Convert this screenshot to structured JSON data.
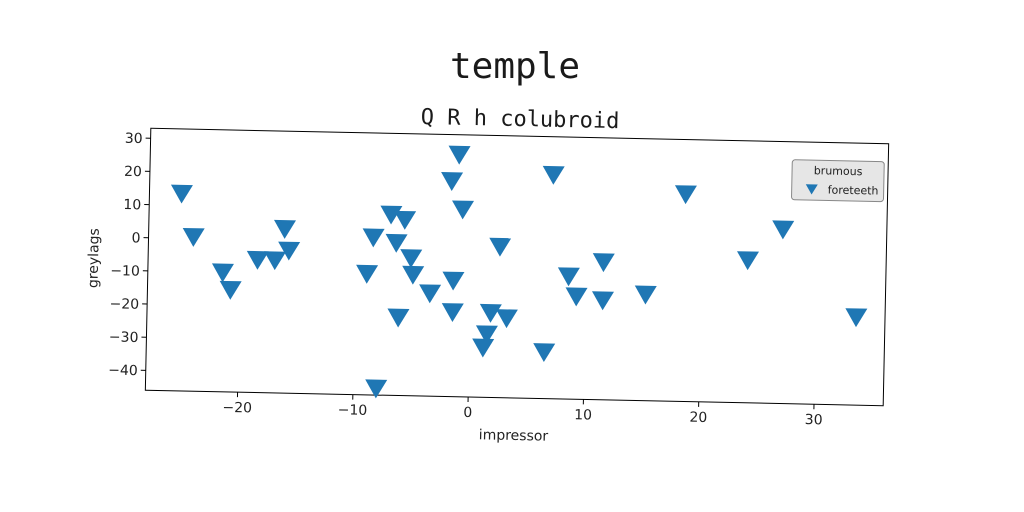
{
  "suptitle": "temple",
  "chart_data": {
    "type": "scatter",
    "title": "Q R h colubroid",
    "xlabel": "impressor",
    "ylabel": "greylags",
    "xlim": [
      -28,
      36
    ],
    "ylim": [
      -46,
      33
    ],
    "xticks": [
      -20,
      -10,
      0,
      10,
      20,
      30
    ],
    "yticks": [
      -40,
      -30,
      -20,
      -10,
      0,
      10,
      20,
      30
    ],
    "grid": false,
    "legend": {
      "title": "brumous",
      "placement": "top-right",
      "entries": [
        "foreteeth"
      ]
    },
    "series": [
      {
        "name": "foreteeth",
        "marker": "triangle-down",
        "color": "#1f77b4",
        "points": [
          {
            "x": -25.2,
            "y": 13.5
          },
          {
            "x": -24.1,
            "y": 0.5
          },
          {
            "x": -21.5,
            "y": -10.0
          },
          {
            "x": -20.8,
            "y": -15.2
          },
          {
            "x": -18.5,
            "y": -6.0
          },
          {
            "x": -17.0,
            "y": -6.0
          },
          {
            "x": -16.2,
            "y": 3.5
          },
          {
            "x": -15.8,
            "y": -3.0
          },
          {
            "x": -9.0,
            "y": -9.5
          },
          {
            "x": -8.5,
            "y": 1.5
          },
          {
            "x": -8.0,
            "y": -44.0
          },
          {
            "x": -7.0,
            "y": 8.5
          },
          {
            "x": -6.5,
            "y": 0.0
          },
          {
            "x": -6.2,
            "y": -22.5
          },
          {
            "x": -5.8,
            "y": 7.0
          },
          {
            "x": -5.2,
            "y": -4.5
          },
          {
            "x": -5.0,
            "y": -9.5
          },
          {
            "x": -3.5,
            "y": -15.0
          },
          {
            "x": -1.8,
            "y": 19.0
          },
          {
            "x": -1.5,
            "y": -11.0
          },
          {
            "x": -1.5,
            "y": -20.5
          },
          {
            "x": -1.2,
            "y": 27.0
          },
          {
            "x": -0.8,
            "y": 10.5
          },
          {
            "x": 1.2,
            "y": -31.0
          },
          {
            "x": 1.8,
            "y": -20.5
          },
          {
            "x": 1.5,
            "y": -27.0
          },
          {
            "x": 2.5,
            "y": -0.5
          },
          {
            "x": 3.2,
            "y": -22.0
          },
          {
            "x": 6.5,
            "y": -32.0
          },
          {
            "x": 7.0,
            "y": 21.5
          },
          {
            "x": 8.5,
            "y": -9.0
          },
          {
            "x": 9.2,
            "y": -15.0
          },
          {
            "x": 11.5,
            "y": -4.5
          },
          {
            "x": 11.5,
            "y": -16.0
          },
          {
            "x": 15.2,
            "y": -14.0
          },
          {
            "x": 18.5,
            "y": 16.5
          },
          {
            "x": 24.0,
            "y": -3.0
          },
          {
            "x": 27.0,
            "y": 6.5
          },
          {
            "x": 33.5,
            "y": -19.5
          }
        ]
      }
    ]
  }
}
